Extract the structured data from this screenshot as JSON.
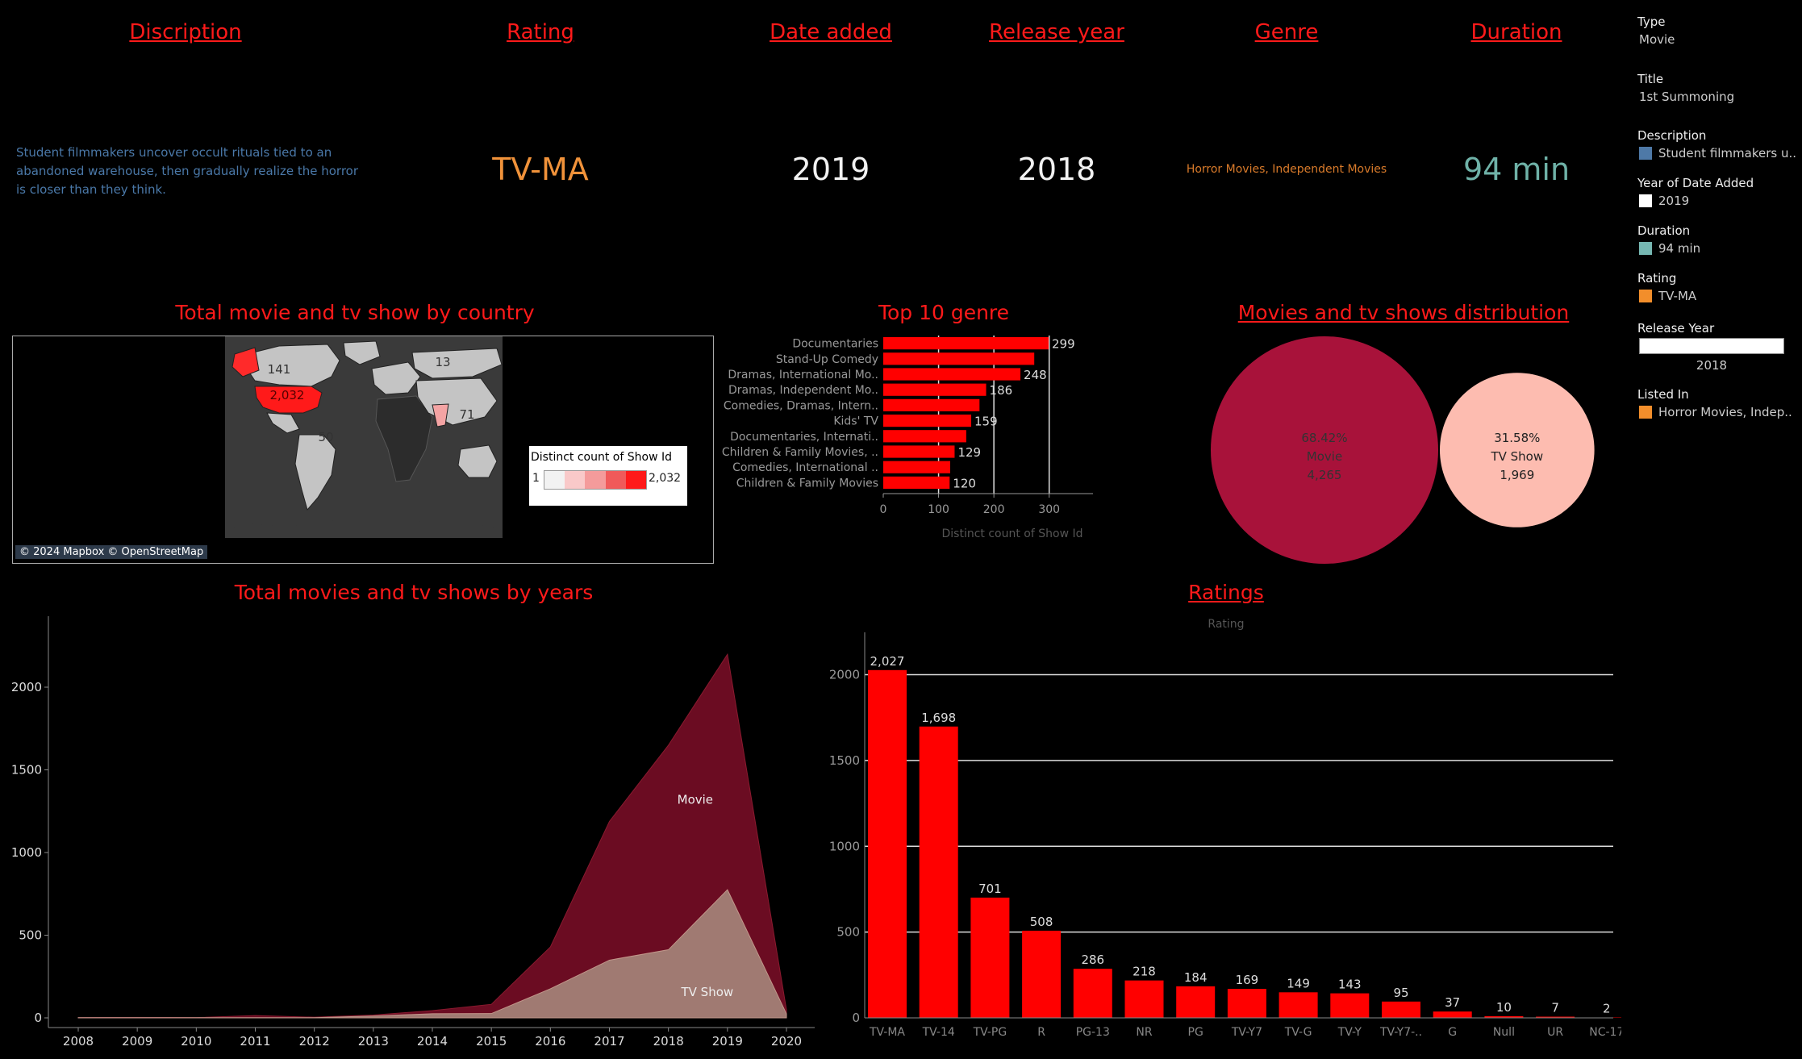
{
  "headers": {
    "description": "Discription",
    "rating": "Rating",
    "date_added": "Date added",
    "release_year": "Release year",
    "genre": "Genre",
    "duration": "Duration"
  },
  "details": {
    "description": "Student filmmakers uncover occult rituals tied to an abandoned warehouse, then gradually realize the horror is closer than they think.",
    "rating": "TV-MA",
    "date_added": "2019",
    "release_year": "2018",
    "genre": "Horror Movies, Independent Movies",
    "duration": "94 min"
  },
  "side_legend": {
    "type_title": "Type",
    "type_value": "Movie",
    "title_title": "Title",
    "title_value": "1st Summoning",
    "description_title": "Description",
    "description_value": "Student filmmakers u..",
    "year_added_title": "Year of Date Added",
    "year_added_value": "2019",
    "duration_title": "Duration",
    "duration_value": "94 min",
    "rating_title": "Rating",
    "rating_value": "TV-MA",
    "release_year_title": "Release Year",
    "release_year_value": "2018",
    "listed_in_title": "Listed In",
    "listed_in_value": "Horror Movies, Indep..",
    "colors": {
      "description": "#4e79a7",
      "year_added": "#ffffff",
      "duration": "#76b7b2",
      "rating": "#f28e2b",
      "listed_in": "#f28e2b"
    }
  },
  "map": {
    "title": "Total movie and tv show by country",
    "legend_title": "Distinct count of Show Id",
    "legend_min": "1",
    "legend_max": "2,032",
    "attribution": "© 2024 Mapbox © OpenStreetMap",
    "labels": {
      "canada": "141",
      "usa": "2,032",
      "russia": "13",
      "brazil": "50",
      "australia": "71"
    }
  },
  "colors": {
    "accent": "#ff0000",
    "title_red": "#ff1a1a",
    "movie": "#a8123a",
    "tv_show": "#fdbcb0",
    "area_movie": "#6b0c22",
    "area_tv": "#a07a72",
    "rating_value": "#f0923a",
    "duration_value": "#6fb2a8",
    "description_text": "#4a78a8",
    "genre_text": "#d87a2a"
  },
  "chart_data": [
    {
      "type": "bar",
      "orientation": "horizontal",
      "title": "Top 10 genre",
      "xlabel": "Distinct count of Show Id",
      "categories": [
        "Documentaries",
        "Stand-Up Comedy",
        "Dramas, International Mo..",
        "Dramas, Independent Mo..",
        "Comedies, Dramas, Intern..",
        "Kids' TV",
        "Documentaries, Internati..",
        "Children & Family Movies, ..",
        "Comedies, International ..",
        "Children & Family Movies"
      ],
      "values": [
        299,
        273,
        248,
        186,
        174,
        159,
        150,
        129,
        121,
        120
      ],
      "data_labels": [
        "299",
        "",
        "248",
        "186",
        "",
        "159",
        "",
        "129",
        "",
        "120"
      ],
      "xlim": [
        0,
        350
      ],
      "xticks": [
        0,
        100,
        200,
        300
      ]
    },
    {
      "type": "pie",
      "title": "Movies and tv shows distribution",
      "categories": [
        "Movie",
        "TV Show"
      ],
      "values": [
        4265,
        1969
      ],
      "percent_labels": [
        "68.42%",
        "31.58%"
      ],
      "value_labels": [
        "4,265",
        "1,969"
      ]
    },
    {
      "type": "area",
      "title": "Total movies and tv shows by years",
      "x": [
        2008,
        2009,
        2010,
        2011,
        2012,
        2013,
        2014,
        2015,
        2016,
        2017,
        2018,
        2019,
        2020
      ],
      "series": [
        {
          "name": "Movie",
          "values": [
            1,
            2,
            1,
            13,
            3,
            6,
            19,
            56,
            253,
            839,
            1237,
            1424,
            25
          ]
        },
        {
          "name": "TV Show",
          "values": [
            1,
            1,
            1,
            1,
            1,
            11,
            25,
            26,
            176,
            349,
            412,
            775,
            24
          ]
        }
      ],
      "ylim": [
        0,
        2400
      ],
      "yticks": [
        0,
        500,
        1000,
        1500,
        2000
      ]
    },
    {
      "type": "bar",
      "title": "Ratings",
      "xlabel": "Rating",
      "categories": [
        "TV-MA",
        "TV-14",
        "TV-PG",
        "R",
        "PG-13",
        "NR",
        "PG",
        "TV-Y7",
        "TV-G",
        "TV-Y",
        "TV-Y7-..",
        "G",
        "Null",
        "UR",
        "NC-17"
      ],
      "values": [
        2027,
        1698,
        701,
        508,
        286,
        218,
        184,
        169,
        149,
        143,
        95,
        37,
        10,
        7,
        2
      ],
      "data_labels": [
        "2,027",
        "1,698",
        "701",
        "508",
        "286",
        "218",
        "184",
        "169",
        "149",
        "143",
        "95",
        "37",
        "10",
        "7",
        "2"
      ],
      "ylim": [
        0,
        2200
      ],
      "yticks": [
        0,
        500,
        1000,
        1500,
        2000
      ]
    }
  ]
}
